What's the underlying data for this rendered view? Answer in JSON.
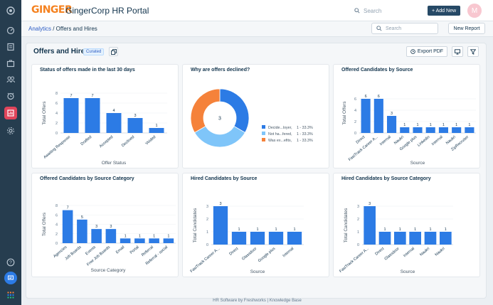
{
  "app": {
    "logo": "GINGER",
    "title": "GingerCorp HR Portal"
  },
  "topbar": {
    "search_placeholder": "Search",
    "add_new_label": "+ Add New",
    "avatar_initial": "M"
  },
  "breadcrumb": {
    "link": "Analytics",
    "current": " / Offers and Hires"
  },
  "subbar": {
    "search_placeholder": "Search",
    "new_report_label": "New Report"
  },
  "report": {
    "title": "Offers and Hires",
    "badge": "Curated",
    "export_label": "Export PDF"
  },
  "footer": {
    "brand": "HR Software",
    "by": " by Freshworks",
    "sep": "  |  ",
    "kb": "Knowledge Base"
  },
  "colors": {
    "bar": "#2c7be5",
    "donut": [
      "#2c7be5",
      "#7fc5f9",
      "#f5823a"
    ]
  },
  "sidebar_icons": [
    "logo-icon",
    "dashboard-icon",
    "reports-icon",
    "jobs-icon",
    "candidates-icon",
    "calendar-icon",
    "analytics-icon",
    "settings-icon",
    "help-icon",
    "chat-icon",
    "apps-icon"
  ],
  "chart_data": [
    {
      "type": "bar",
      "title": "Status of offers made in the last 30 days",
      "categories": [
        "Awaiting Response",
        "Drafted",
        "Accepted",
        "Declined",
        "Voided"
      ],
      "values": [
        7,
        7,
        4,
        3,
        1
      ],
      "xlabel": "Offer Status",
      "ylabel": "Total Offers",
      "ylim": [
        0,
        8
      ]
    },
    {
      "type": "pie",
      "title": "Why are offers declined?",
      "center_label": "3",
      "slices": [
        {
          "label": "Decide...loyer,",
          "value": 1,
          "pct": "1 - 33.3%"
        },
        {
          "label": "Not ha...fered,",
          "value": 1,
          "pct": "1 - 33.3%"
        },
        {
          "label": "Was ex...efits,",
          "value": 1,
          "pct": "1 - 33.3%"
        }
      ]
    },
    {
      "type": "bar",
      "title": "Offered Candidates by Source",
      "categories": [
        "Direct",
        "FastTrack Career A...",
        "Internal",
        "Naukri",
        "Google plus",
        "Linkedin",
        "Internal",
        "Naukri",
        "ZipRecruiter"
      ],
      "values": [
        6,
        6,
        3,
        1,
        1,
        1,
        1,
        1,
        1
      ],
      "xlabel": "Source",
      "ylabel": "Total Offers",
      "ylim": [
        0,
        7
      ]
    },
    {
      "type": "bar",
      "title": "Offered Candidates by Source Category",
      "categories": [
        "Agencies",
        "Job Boards",
        "Events",
        "Free Job Boards",
        "Email",
        "Portal",
        "Referral",
        "Referral - social"
      ],
      "values": [
        7,
        5,
        3,
        3,
        1,
        1,
        1,
        1
      ],
      "xlabel": "Source Category",
      "ylabel": "Total Offers",
      "ylim": [
        0,
        8
      ]
    },
    {
      "type": "bar",
      "title": "Hired Candidates by Source",
      "categories": [
        "FastTrack Career A...",
        "Direct",
        "Glassdoor",
        "Google plus",
        "Internal"
      ],
      "values": [
        3,
        1,
        1,
        1,
        1
      ],
      "xlabel": "Source",
      "ylabel": "Total Candidates",
      "ylim": [
        0,
        3
      ]
    },
    {
      "type": "bar",
      "title": "Hired Candidates by Source Category",
      "categories": [
        "FastTrack Career A...",
        "Direct",
        "Glassdoor",
        "Internal",
        "Naukri",
        "Naukri"
      ],
      "values": [
        3,
        1,
        1,
        1,
        1,
        1
      ],
      "xlabel": "Source",
      "ylabel": "Total Candidates",
      "ylim": [
        0,
        3
      ]
    }
  ]
}
